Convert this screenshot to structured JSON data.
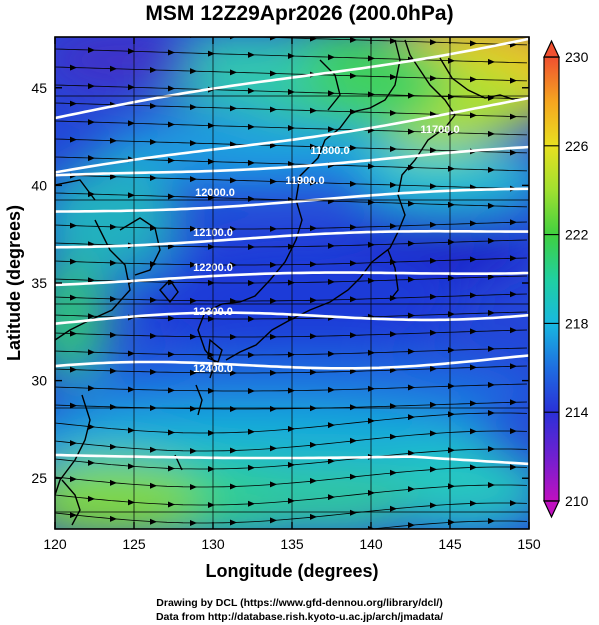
{
  "title": "MSM 12Z29Apr2026 (200.0hPa)",
  "xaxis": {
    "label": "Longitude (degrees)",
    "ticks": [
      "120",
      "125",
      "130",
      "135",
      "140",
      "145",
      "150"
    ],
    "range": [
      120,
      150
    ]
  },
  "yaxis": {
    "label": "Latitude  (degrees)",
    "ticks": [
      "25",
      "30",
      "35",
      "40",
      "45"
    ],
    "range": [
      22.4,
      47.6
    ]
  },
  "colorbar": {
    "ticks": [
      "210",
      "214",
      "218",
      "222",
      "226",
      "230"
    ],
    "range": [
      210,
      230
    ],
    "colors": [
      "#c010c0",
      "#7020d0",
      "#2a30d8",
      "#1e6ee0",
      "#18b8e0",
      "#20d0a0",
      "#40d040",
      "#a0e030",
      "#e8e020",
      "#f5a520",
      "#f05030"
    ]
  },
  "contours": [
    {
      "label": "11700.0"
    },
    {
      "label": "11800.0"
    },
    {
      "label": "11900.0"
    },
    {
      "label": "12000.0"
    },
    {
      "label": "12100.0"
    },
    {
      "label": "12200.0"
    },
    {
      "label": "12300.0"
    },
    {
      "label": "12400.0"
    }
  ],
  "credits": {
    "line1": "Drawing by DCL (https://www.gfd-dennou.org/library/dcl/)",
    "line2": "Data from http://database.rish.kyoto-u.ac.jp/arch/jmadata/"
  }
}
